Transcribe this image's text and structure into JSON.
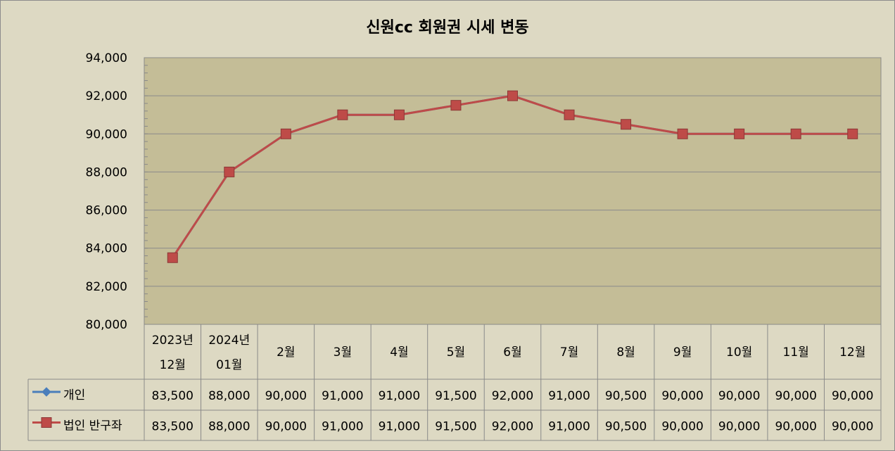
{
  "chart_data": {
    "type": "line",
    "title": "신원cc 회원권 시세 변동",
    "categories": [
      [
        "2023년",
        "12월"
      ],
      [
        "2024년",
        "01월"
      ],
      [
        "2월"
      ],
      [
        "3월"
      ],
      [
        "4월"
      ],
      [
        "5월"
      ],
      [
        "6월"
      ],
      [
        "7월"
      ],
      [
        "8월"
      ],
      [
        "9월"
      ],
      [
        "10월"
      ],
      [
        "11월"
      ],
      [
        "12월"
      ]
    ],
    "ylim": [
      80000,
      94000
    ],
    "yticks": [
      "80,000",
      "82,000",
      "84,000",
      "86,000",
      "88,000",
      "90,000",
      "92,000",
      "94,000"
    ],
    "ytick_values": [
      80000,
      82000,
      84000,
      86000,
      88000,
      90000,
      92000,
      94000
    ],
    "grid": true,
    "legend": "data-table",
    "series": [
      {
        "name": "개인",
        "color": "#4a7ebb",
        "marker": "diamond",
        "values": [
          83500,
          88000,
          90000,
          91000,
          91000,
          91500,
          92000,
          91000,
          90500,
          90000,
          90000,
          90000,
          90000
        ],
        "labels": [
          "83,500",
          "88,000",
          "90,000",
          "91,000",
          "91,000",
          "91,500",
          "92,000",
          "91,000",
          "90,500",
          "90,000",
          "90,000",
          "90,000",
          "90,000"
        ]
      },
      {
        "name": "법인 반구좌",
        "color": "#be4b48",
        "marker": "square",
        "values": [
          83500,
          88000,
          90000,
          91000,
          91000,
          91500,
          92000,
          91000,
          90500,
          90000,
          90000,
          90000,
          90000
        ],
        "labels": [
          "83,500",
          "88,000",
          "90,000",
          "91,000",
          "91,000",
          "91,500",
          "92,000",
          "91,000",
          "90,500",
          "90,000",
          "90,000",
          "90,000",
          "90,000"
        ]
      }
    ],
    "colors": {
      "plot_background": "#c4bd97",
      "chart_background": "#ddd9c3",
      "gridline": "#8a8a8a"
    }
  }
}
